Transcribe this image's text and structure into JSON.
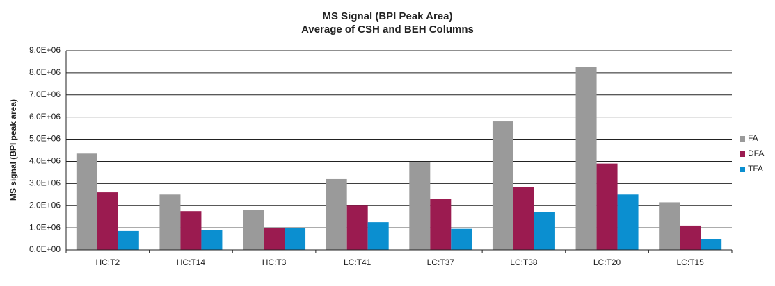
{
  "chart_data": {
    "type": "bar",
    "title": "MS Signal (BPI Peak Area)",
    "subtitle": "Average of CSH and BEH Columns",
    "y_label": "MS signal (BPI peak area)",
    "categories": [
      "HC:T2",
      "HC:T14",
      "HC:T3",
      "LC:T41",
      "LC:T37",
      "LC:T38",
      "LC:T20",
      "LC:T15"
    ],
    "series": [
      {
        "name": "FA",
        "color": "#9a9a9a",
        "values": [
          4350000,
          2500000,
          1800000,
          3200000,
          3950000,
          5800000,
          8250000,
          2150000
        ]
      },
      {
        "name": "DFA",
        "color": "#9b1b50",
        "values": [
          2600000,
          1750000,
          1000000,
          2000000,
          2300000,
          2850000,
          3900000,
          1100000
        ]
      },
      {
        "name": "TFA",
        "color": "#0b8fd0",
        "values": [
          850000,
          900000,
          1000000,
          1250000,
          950000,
          1700000,
          2500000,
          500000
        ]
      }
    ],
    "ylim": [
      0,
      9000000
    ],
    "yticks": [
      {
        "value": 0,
        "label": "0.0E+00"
      },
      {
        "value": 1000000,
        "label": "1.0E+06"
      },
      {
        "value": 2000000,
        "label": "2.0E+06"
      },
      {
        "value": 3000000,
        "label": "3.0E+06"
      },
      {
        "value": 4000000,
        "label": "4.0E+06"
      },
      {
        "value": 5000000,
        "label": "5.0E+06"
      },
      {
        "value": 6000000,
        "label": "6.0E+06"
      },
      {
        "value": 7000000,
        "label": "7.0E+06"
      },
      {
        "value": 8000000,
        "label": "8.0E+06"
      },
      {
        "value": 9000000,
        "label": "9.0E+06"
      }
    ],
    "grid": true,
    "legend": "right"
  }
}
